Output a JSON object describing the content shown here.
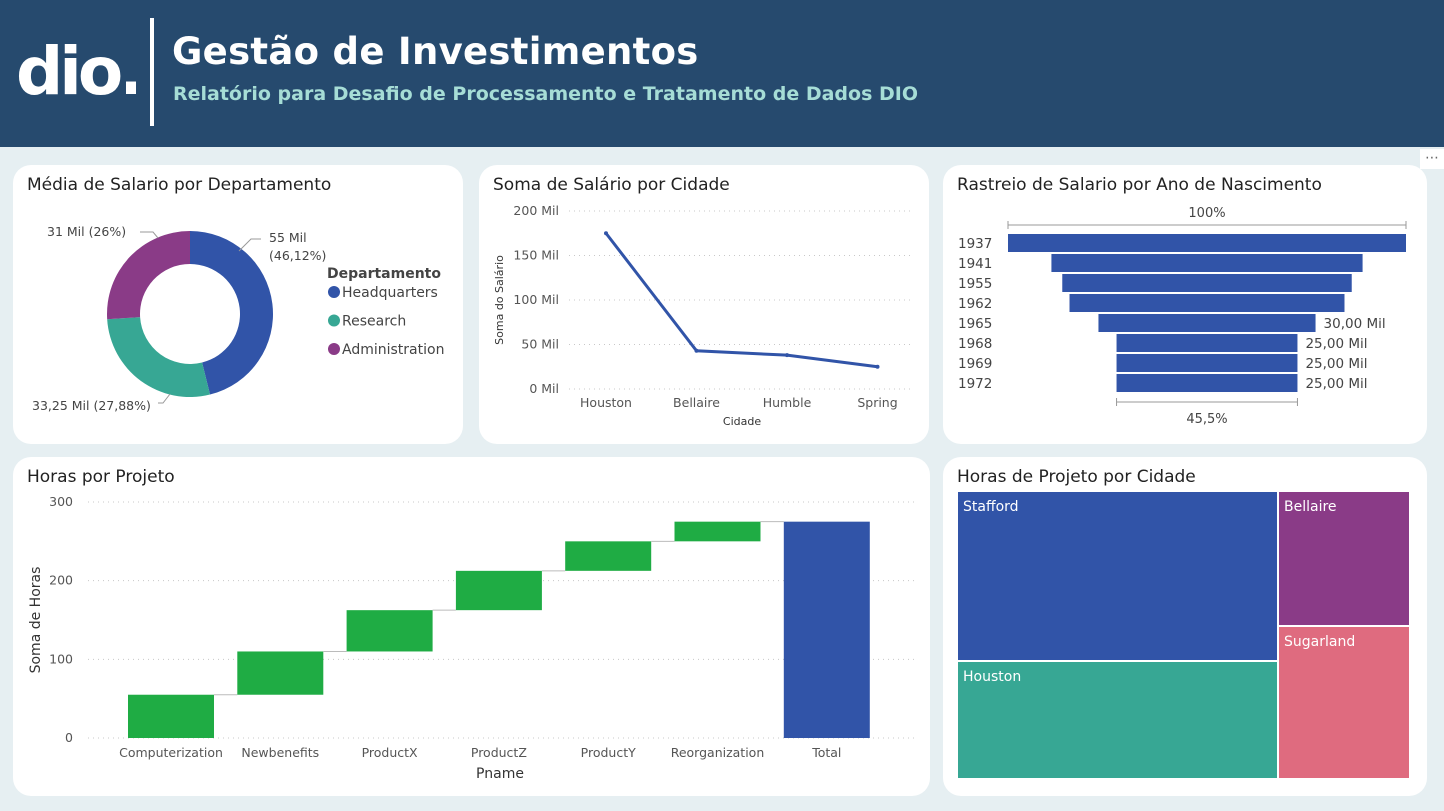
{
  "header": {
    "title": "Gestão de Investimentos",
    "subtitle": "Relatório para Desafio de Processamento e Tratamento de Dados DIO",
    "logo_text": "dio.",
    "more_icon": "⋯"
  },
  "colors": {
    "header_bg": "#264a6e",
    "subtitle": "#a6ddd6",
    "blue": "#3154a8",
    "teal": "#37a794",
    "purple": "#8a3b87",
    "pink": "#df6b7f",
    "green": "#1fac44",
    "background": "#e6eff2"
  },
  "donut": {
    "title": "Média de Salario por Departamento",
    "legend_title": "Departamento",
    "slices": [
      {
        "name": "Headquarters",
        "value": 55,
        "pct": 46.12,
        "label_line1": "55 Mil",
        "label_line2": "(46,12%)",
        "color": "#3154a8"
      },
      {
        "name": "Research",
        "value": 33.25,
        "pct": 27.88,
        "label_line1": "33,25 Mil (27,88%)",
        "label_line2": "",
        "color": "#37a794"
      },
      {
        "name": "Administration",
        "value": 31,
        "pct": 26,
        "label_line1": "31 Mil (26%)",
        "label_line2": "",
        "color": "#8a3b87"
      }
    ]
  },
  "line_chart": {
    "title": "Soma de Salário por Cidade",
    "chart_data": {
      "type": "line",
      "categories": [
        "Houston",
        "Bellaire",
        "Humble",
        "Spring"
      ],
      "values": [
        175,
        43,
        38,
        25
      ],
      "yticks": [
        "0 Mil",
        "50 Mil",
        "100 Mil",
        "150 Mil",
        "200 Mil"
      ],
      "ylim": [
        0,
        200
      ],
      "xlabel": "Cidade",
      "ylabel": "Soma do Salário"
    }
  },
  "funnel": {
    "title": "Rastreio de Salario por Ano de Nascimento",
    "top_pct": "100%",
    "bottom_pct": "45,5%",
    "chart_data": {
      "type": "bar",
      "orientation": "funnel",
      "categories": [
        "1937",
        "1941",
        "1955",
        "1962",
        "1965",
        "1968",
        "1969",
        "1972"
      ],
      "values": [
        55,
        43,
        40,
        38,
        30,
        25,
        25,
        25
      ],
      "value_labels": [
        "",
        "",
        "",
        "",
        "30,00 Mil",
        "25,00 Mil",
        "25,00 Mil",
        "25,00 Mil"
      ]
    }
  },
  "waterfall": {
    "title": "Horas por Projeto",
    "chart_data": {
      "type": "bar",
      "subtype": "waterfall",
      "categories": [
        "Computerization",
        "Newbenefits",
        "ProductX",
        "ProductZ",
        "ProductY",
        "Reorganization",
        "Total"
      ],
      "values": [
        55,
        55,
        52.5,
        50,
        37.5,
        25,
        275
      ],
      "yticks": [
        "0",
        "100",
        "200",
        "300"
      ],
      "ylim": [
        0,
        300
      ],
      "xlabel": "Pname",
      "ylabel": "Soma de Horas"
    }
  },
  "treemap": {
    "title": "Horas de Projeto por Cidade",
    "items": [
      {
        "name": "Stafford",
        "value": 115,
        "color": "#3154a8"
      },
      {
        "name": "Houston",
        "value": 80,
        "color": "#37a794"
      },
      {
        "name": "Bellaire",
        "value": 37.5,
        "color": "#8a3b87"
      },
      {
        "name": "Sugarland",
        "value": 42.5,
        "color": "#df6b7f"
      }
    ]
  }
}
